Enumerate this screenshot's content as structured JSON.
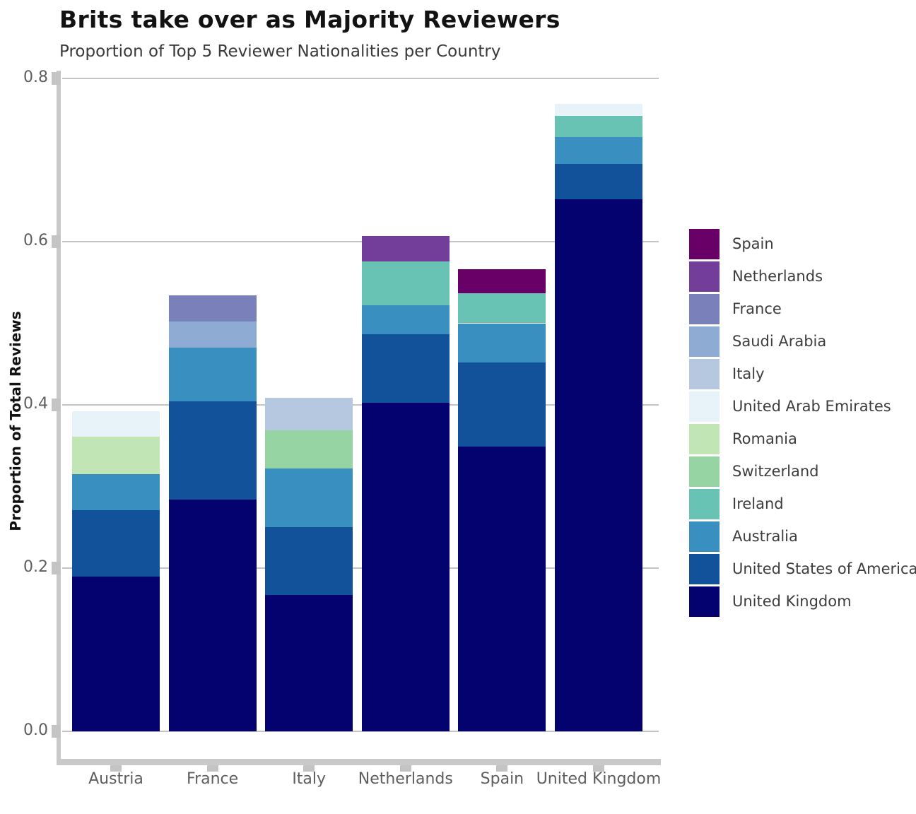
{
  "chart_data": {
    "type": "bar",
    "stacked": true,
    "title": "Brits take over as Majority Reviewers",
    "subtitle": "Proportion of Top 5 Reviewer Nationalities per Country",
    "ylabel": "Proportion of Total Reviews",
    "xlabel": "",
    "ylim": [
      0,
      0.8
    ],
    "yticks": [
      0,
      0.2,
      0.4,
      0.6,
      0.8
    ],
    "ytick_labels": [
      "0.0",
      "0.2",
      "0.4",
      "0.6",
      "0.8"
    ],
    "grid": true,
    "categories": [
      "Austria",
      "France",
      "Italy",
      "Netherlands",
      "Spain",
      "United Kingdom"
    ],
    "series": [
      {
        "name": "United Kingdom",
        "color": "#04026F",
        "values": [
          0.19,
          0.284,
          0.167,
          0.403,
          0.349,
          0.652
        ]
      },
      {
        "name": "United States of America",
        "color": "#11529B",
        "values": [
          0.081,
          0.12,
          0.083,
          0.084,
          0.103,
          0.043
        ]
      },
      {
        "name": "Australia",
        "color": "#3990C0",
        "values": [
          0.044,
          0.066,
          0.072,
          0.035,
          0.048,
          0.033
        ]
      },
      {
        "name": "Ireland",
        "color": "#69C3B5",
        "values": [
          0,
          0,
          0,
          0.054,
          0.037,
          0.026
        ]
      },
      {
        "name": "Switzerland",
        "color": "#96D4A4",
        "values": [
          0,
          0,
          0.047,
          0,
          0,
          0
        ]
      },
      {
        "name": "Romania",
        "color": "#C2E5B6",
        "values": [
          0.046,
          0,
          0,
          0,
          0,
          0
        ]
      },
      {
        "name": "United Arab Emirates",
        "color": "#E8F3F9",
        "values": [
          0.031,
          0,
          0,
          0,
          0,
          0.015
        ]
      },
      {
        "name": "Italy",
        "color": "#B5C8E0",
        "values": [
          0,
          0,
          0.04,
          0,
          0,
          0
        ]
      },
      {
        "name": "Saudi Arabia",
        "color": "#8EACD3",
        "values": [
          0,
          0.032,
          0,
          0,
          0,
          0
        ]
      },
      {
        "name": "France",
        "color": "#7A81BA",
        "values": [
          0,
          0.032,
          0,
          0,
          0,
          0
        ]
      },
      {
        "name": "Netherlands",
        "color": "#723E99",
        "values": [
          0,
          0,
          0,
          0.031,
          0,
          0
        ]
      },
      {
        "name": "Spain",
        "color": "#690067",
        "values": [
          0,
          0,
          0,
          0,
          0.029,
          0
        ]
      }
    ],
    "legend": {
      "position": "right",
      "entries_top_to_bottom": [
        "Spain",
        "Netherlands",
        "France",
        "Saudi Arabia",
        "Italy",
        "United Arab Emirates",
        "Romania",
        "Switzerland",
        "Ireland",
        "Australia",
        "United States of America",
        "United Kingdom"
      ]
    },
    "style_colors": {
      "axis_line": "#C9C9C9",
      "tick_mark": "#C4C4C4",
      "gridline": "#C4C4C4",
      "tick_label": "#5e5e5e",
      "title": "#121212",
      "subtitle": "#3a3a3a",
      "legend_label": "#3d3d3d"
    }
  }
}
